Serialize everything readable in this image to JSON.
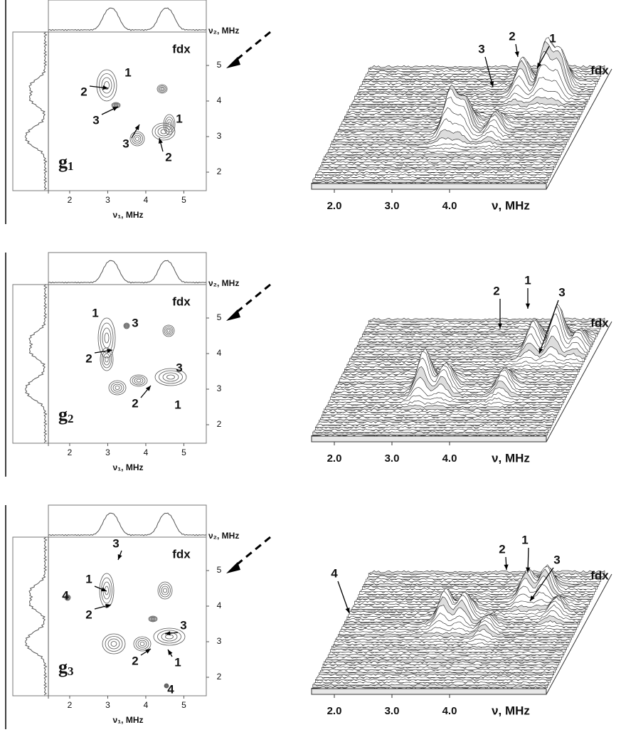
{
  "figure": {
    "panels": [
      {
        "panel_label": {
          "letter": "g",
          "index": "1"
        },
        "contour": {
          "x_label": "ν₁, MHz",
          "y_label": "ν₂, MHz",
          "corner_label": "fdx",
          "xticks": [
            2,
            3,
            4,
            5
          ],
          "yticks": [
            2,
            3,
            4,
            5
          ],
          "peak_labels": [
            "1",
            "2",
            "3",
            "3",
            "1",
            "2"
          ]
        },
        "surface": {
          "x_label": "ν, MHz",
          "corner_label": "fdx",
          "xticks": [
            {
              "value": 2,
              "label": "2.0"
            },
            {
              "value": 3,
              "label": "3.0"
            },
            {
              "value": 4,
              "label": "4.0"
            }
          ],
          "peak_labels": [
            "3",
            "2",
            "1"
          ]
        }
      },
      {
        "panel_label": {
          "letter": "g",
          "index": "2"
        },
        "contour": {
          "x_label": "ν₁, MHz",
          "y_label": "ν₂, MHz",
          "corner_label": "fdx",
          "xticks": [
            2,
            3,
            4,
            5
          ],
          "yticks": [
            2,
            3,
            4,
            5
          ],
          "peak_labels": [
            "1",
            "3",
            "2",
            "3",
            "2",
            "1"
          ]
        },
        "surface": {
          "x_label": "ν, MHz",
          "corner_label": "fdx",
          "xticks": [
            {
              "value": 2,
              "label": "2.0"
            },
            {
              "value": 3,
              "label": "3.0"
            },
            {
              "value": 4,
              "label": "4.0"
            }
          ],
          "peak_labels": [
            "2",
            "1",
            "3"
          ]
        }
      },
      {
        "panel_label": {
          "letter": "g",
          "index": "3"
        },
        "contour": {
          "x_label": "ν₁, MHz",
          "y_label": "ν₂, MHz",
          "corner_label": "fdx",
          "xticks": [
            2,
            3,
            4,
            5
          ],
          "yticks": [
            2,
            3,
            4,
            5
          ],
          "peak_labels": [
            "3",
            "1",
            "4",
            "2",
            "3",
            "2",
            "1",
            "4"
          ]
        },
        "surface": {
          "x_label": "ν, MHz",
          "corner_label": "fdx",
          "xticks": [
            {
              "value": 2,
              "label": "2.0"
            },
            {
              "value": 3,
              "label": "3.0"
            },
            {
              "value": 4,
              "label": "4.0"
            }
          ],
          "peak_labels": [
            "4",
            "2",
            "1",
            "3"
          ]
        }
      }
    ]
  }
}
